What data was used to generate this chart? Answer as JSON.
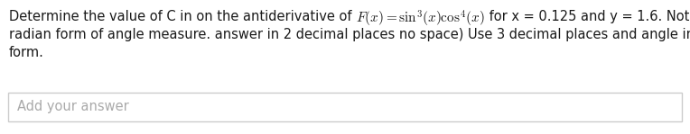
{
  "line1_pre": "Determine the value of C in on the antiderivative of ",
  "line1_formula": "$F(x) = \\sin^3\\!(x)\\cos^4\\!(x)$",
  "line1_post": " for x = 0.125 and y = 1.6. Note: (use",
  "line2": "radian form of angle measure. answer in 2 decimal places no space) Use 3 decimal places and angle in radian",
  "line3": "form.",
  "placeholder": "Add your answer",
  "bg_color": "#ffffff",
  "text_color": "#1a1a1a",
  "placeholder_color": "#aaaaaa",
  "box_edge_color": "#cccccc",
  "font_size": 10.5,
  "formula_font_size": 11.0,
  "fig_width": 7.64,
  "fig_height": 1.49,
  "dpi": 100
}
